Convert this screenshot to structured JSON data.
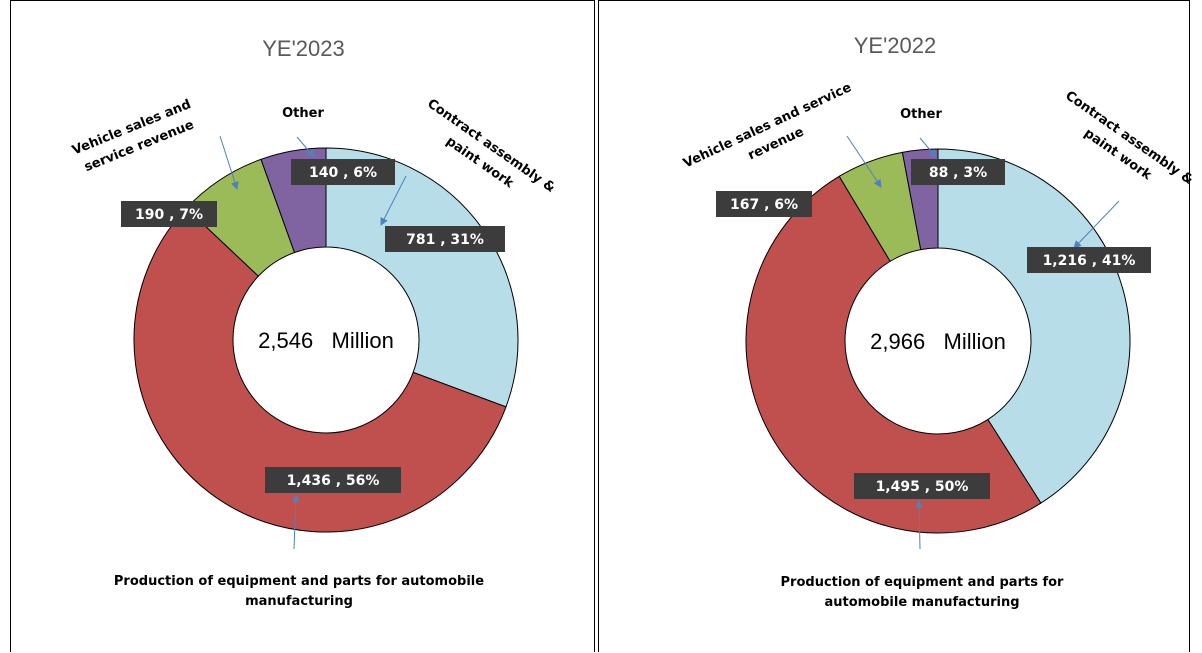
{
  "chart_data": [
    {
      "type": "pie",
      "donut": true,
      "title": "YE'2023",
      "center_value": "2,546",
      "center_unit": "Million",
      "slices": [
        {
          "category": "Contract assembly & paint work",
          "value": 781,
          "percent": 31,
          "label": "781 , 31%",
          "color": "#b7dde8"
        },
        {
          "category": "Production of equipment and parts for automobile manufacturing",
          "value": 1436,
          "percent": 56,
          "label": "1,436 , 56%",
          "color": "#c0504d"
        },
        {
          "category": "Vehicle sales and service revenue",
          "value": 190,
          "percent": 7,
          "label": "190 , 7%",
          "color": "#9bbb59"
        },
        {
          "category": "Other",
          "value": 140,
          "percent": 6,
          "label": "140 , 6%",
          "color": "#8064a2"
        }
      ],
      "category_labels": {
        "contract": [
          "Contract assembly &",
          "paint work"
        ],
        "production": [
          "Production of equipment and parts for automobile",
          "manufacturing"
        ],
        "vehicle": [
          "Vehicle sales and",
          "service revenue"
        ],
        "other": [
          "Other"
        ]
      }
    },
    {
      "type": "pie",
      "donut": true,
      "title": "YE'2022",
      "center_value": "2,966",
      "center_unit": "Million",
      "slices": [
        {
          "category": "Contract assembly & paint work",
          "value": 1216,
          "percent": 41,
          "label": "1,216 , 41%",
          "color": "#b7dde8"
        },
        {
          "category": "Production of equipment and parts for automobile manufacturing",
          "value": 1495,
          "percent": 50,
          "label": "1,495 , 50%",
          "color": "#c0504d"
        },
        {
          "category": "Vehicle sales and service revenue",
          "value": 167,
          "percent": 6,
          "label": "167 , 6%",
          "color": "#9bbb59"
        },
        {
          "category": "Other",
          "value": 88,
          "percent": 3,
          "label": "88 , 3%",
          "color": "#8064a2"
        }
      ],
      "category_labels": {
        "contract": [
          "Contract assembly &",
          "paint work"
        ],
        "production": [
          "Production of equipment and parts for",
          "automobile manufacturing"
        ],
        "vehicle": [
          "Vehicle sales and service",
          "revenue"
        ],
        "other": [
          "Other"
        ]
      }
    }
  ]
}
